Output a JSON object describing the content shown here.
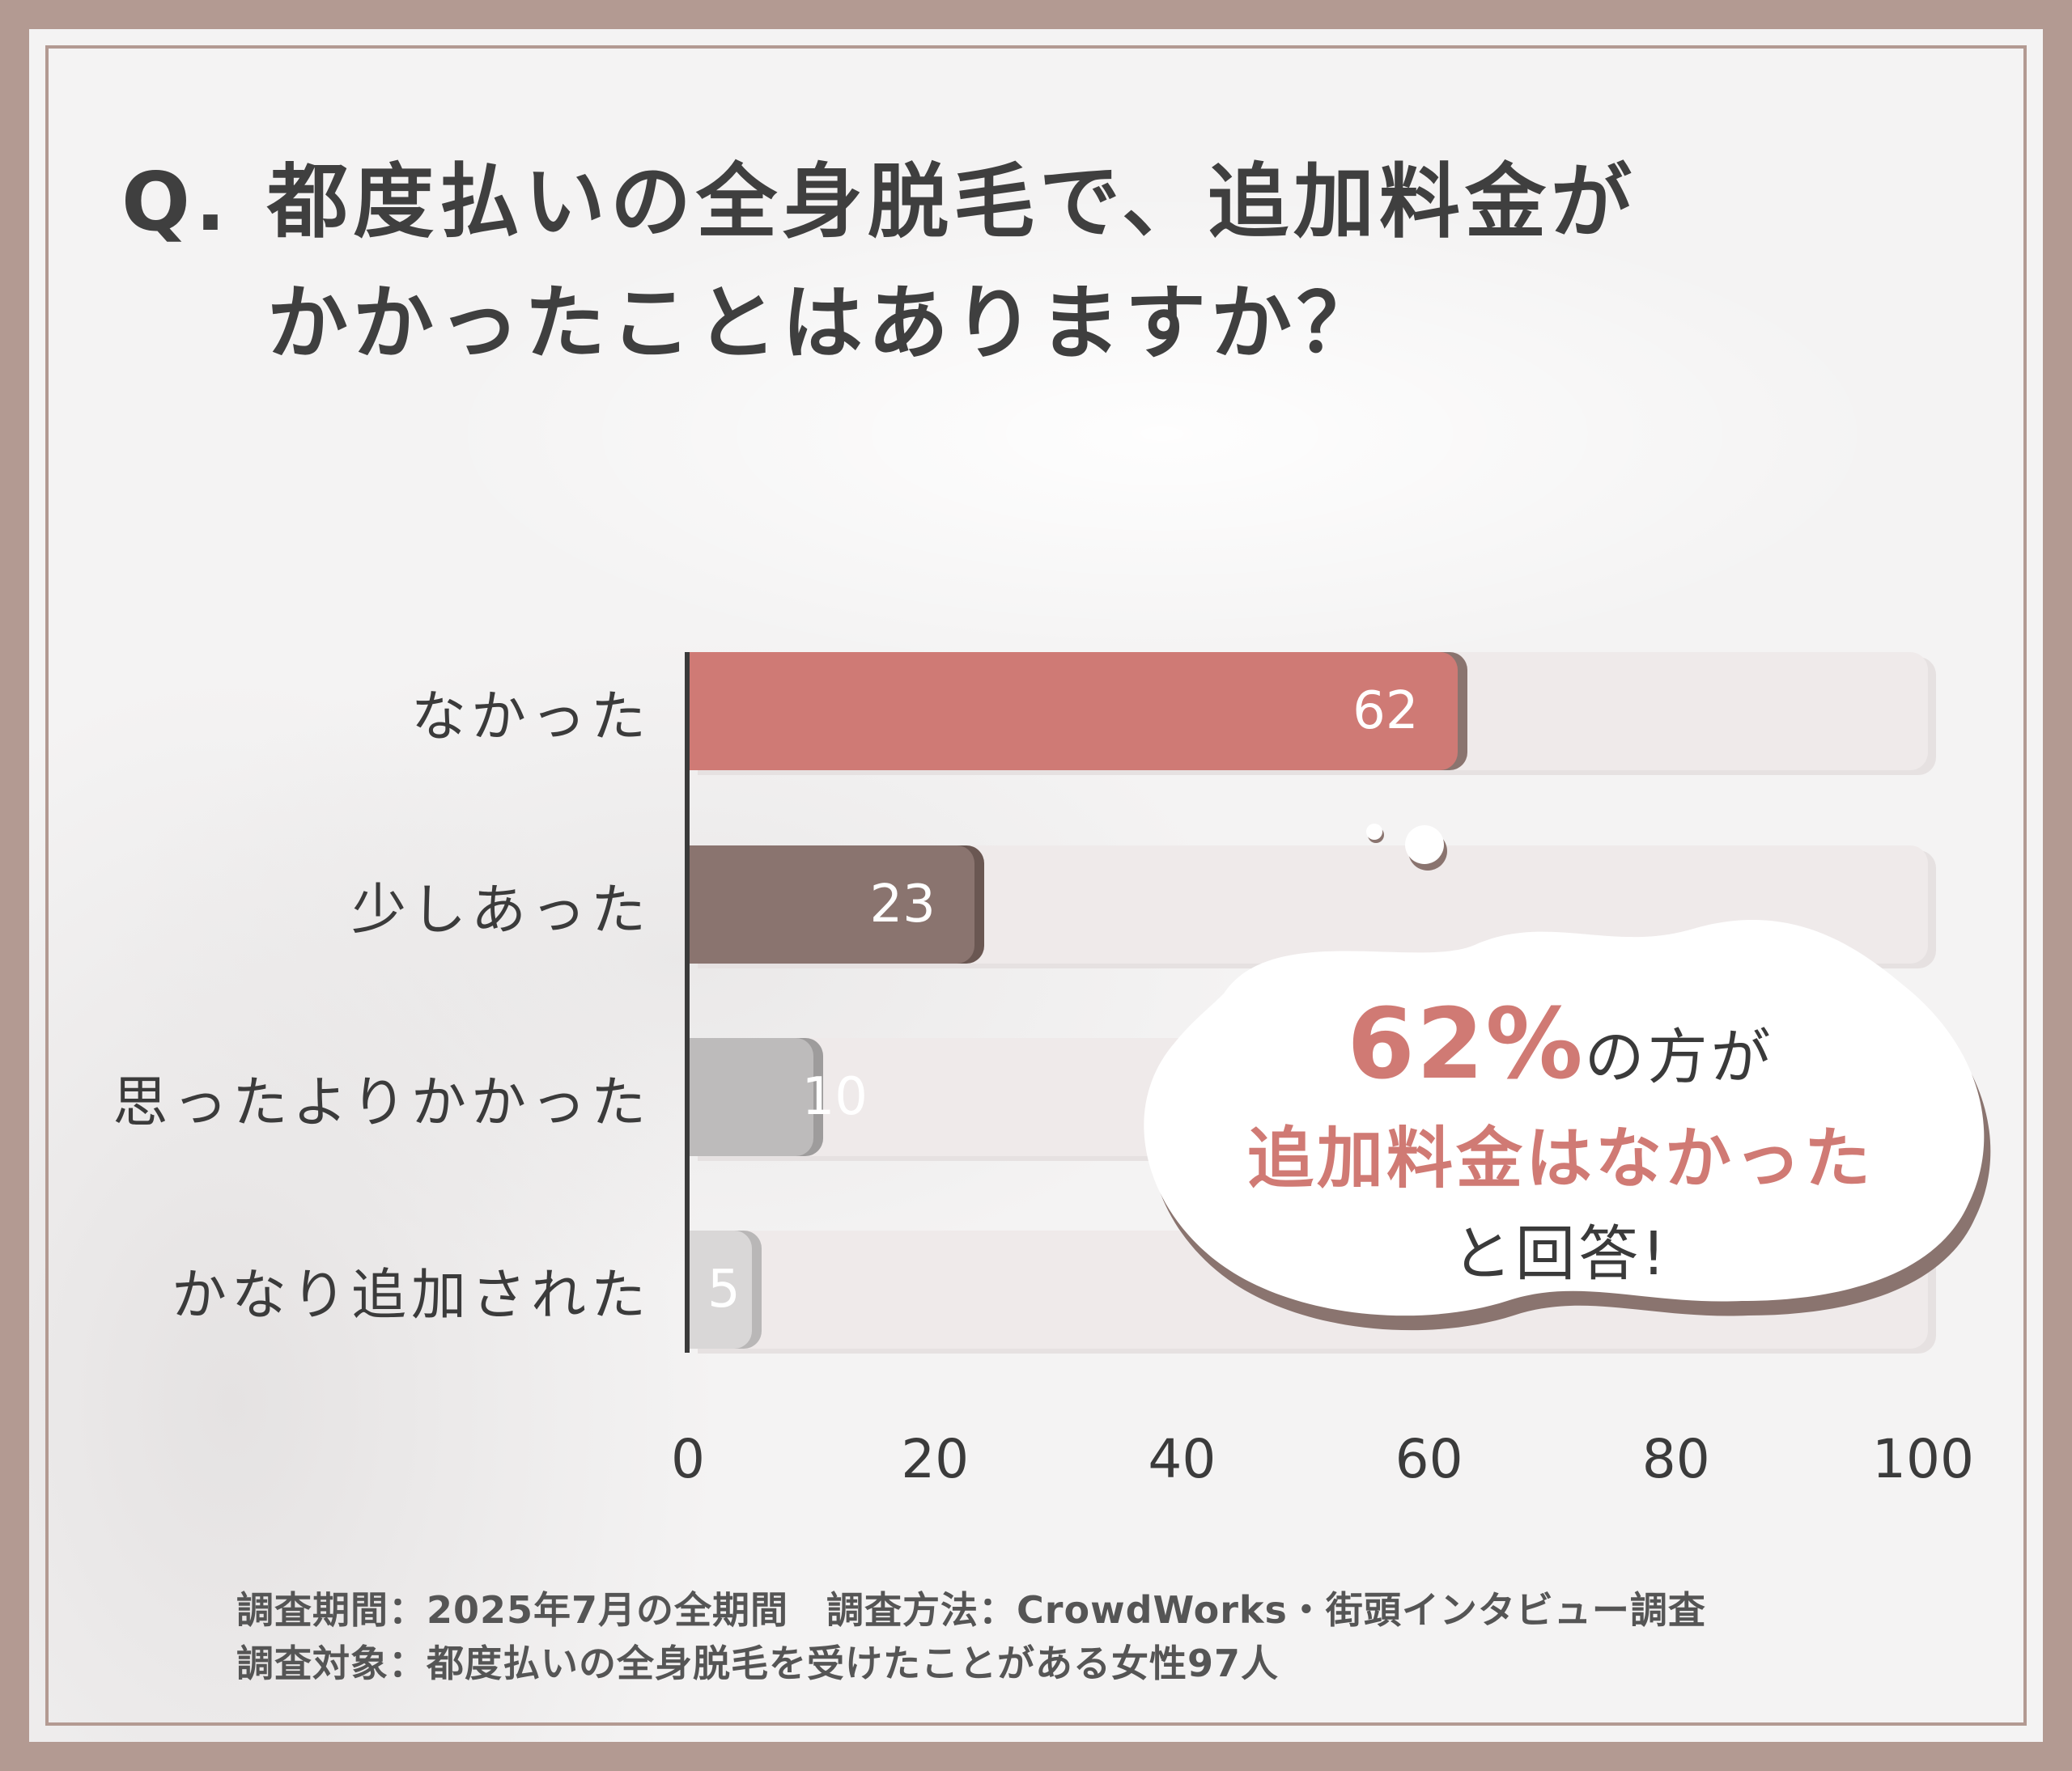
{
  "title": {
    "prefix": "Q.",
    "line1": "都度払いの全身脱毛で、追加料金が",
    "line2": "かかったことはありますか？"
  },
  "chart_data": {
    "type": "bar",
    "orientation": "horizontal",
    "categories": [
      "なかった",
      "少しあった",
      "思ったよりかかった",
      "かなり追加された"
    ],
    "values": [
      62,
      23,
      10,
      5
    ],
    "bar_colors": [
      "#cf7a75",
      "#8a746f",
      "#bdbbbb",
      "#d9d7d7"
    ],
    "xlim": [
      0,
      100
    ],
    "x_ticks": [
      "0",
      "20",
      "40",
      "60",
      "80",
      "100"
    ]
  },
  "callout": {
    "percent": "62%",
    "line1_suffix": "の方が",
    "line2": "追加料金はなかった",
    "line3": "と回答!"
  },
  "footer": {
    "line1": "調査期間：2025年7月の全期間　調査方法：CrowdWorks・街頭インタビュー調査",
    "line2": "調査対象：都度払いの全身脱毛を受けたことがある女性97人"
  }
}
